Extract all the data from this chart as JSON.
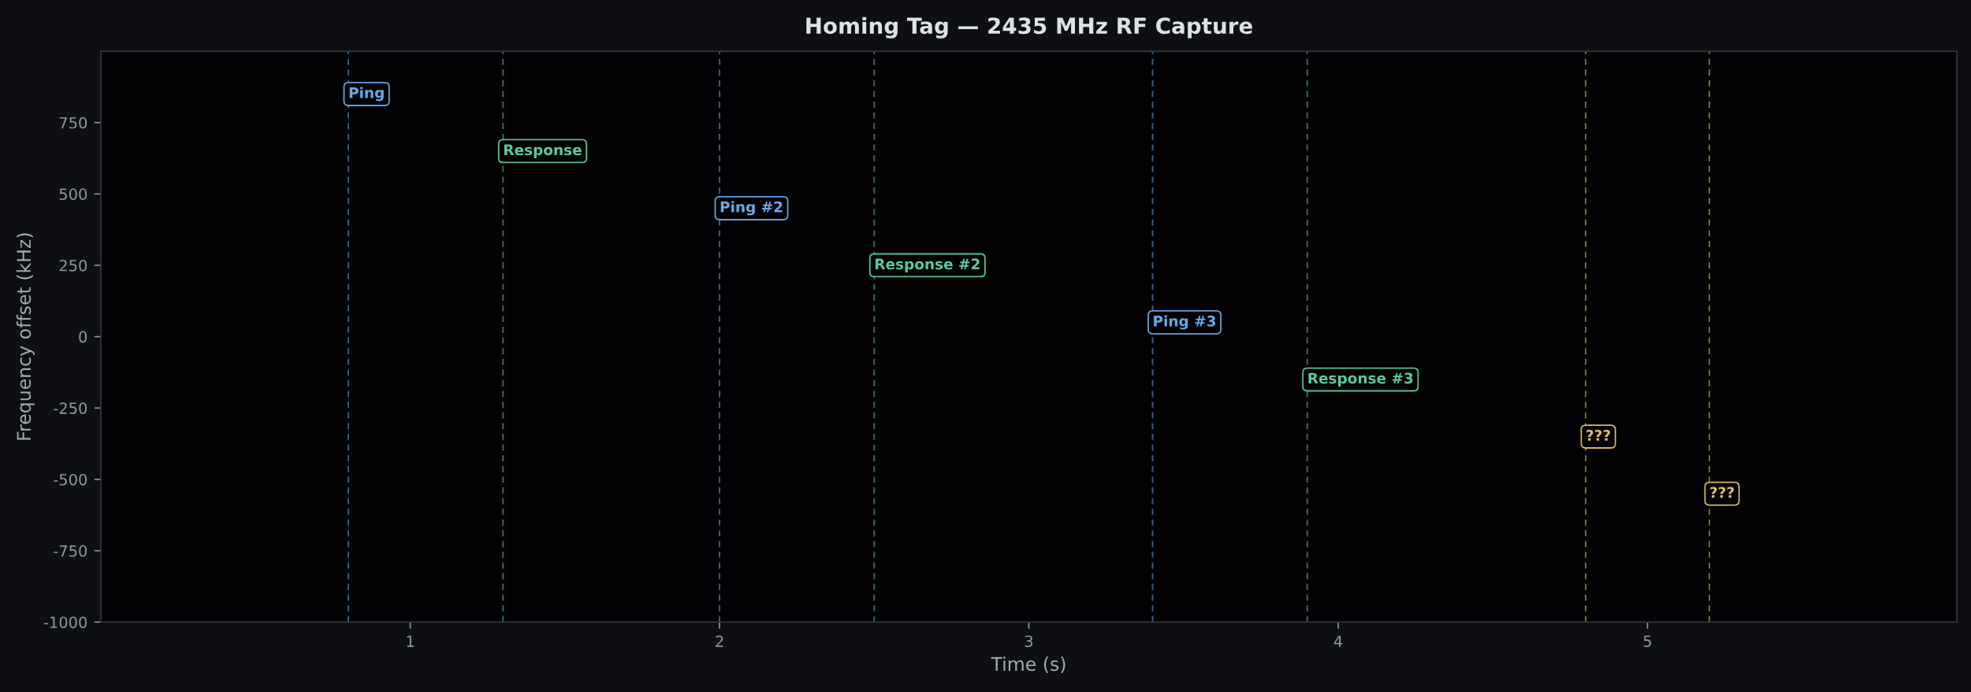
{
  "chart_data": {
    "type": "line",
    "title": "Homing Tag — 2435 MHz RF Capture",
    "xlabel": "Time (s)",
    "ylabel": "Frequency offset (kHz)",
    "xlim": [
      0,
      6
    ],
    "xticks": [
      1,
      2,
      3,
      4,
      5
    ],
    "ylim": [
      -1000,
      1000
    ],
    "yticks": [
      -1000,
      -750,
      -500,
      -250,
      0,
      250,
      500,
      750
    ],
    "ref_lines": [
      {
        "axis": "x",
        "value": 0.8,
        "color": "#6aaae8",
        "line_style": "dashed"
      },
      {
        "axis": "x",
        "value": 1.3,
        "color": "#5cc9a3",
        "line_style": "dashed"
      },
      {
        "axis": "x",
        "value": 2.0,
        "color": "#6aaae8",
        "line_style": "dashed"
      },
      {
        "axis": "x",
        "value": 2.5,
        "color": "#5cc9a3",
        "line_style": "dashed"
      },
      {
        "axis": "x",
        "value": 3.4,
        "color": "#6aaae8",
        "line_style": "dashed"
      },
      {
        "axis": "x",
        "value": 3.9,
        "color": "#5cc9a3",
        "line_style": "dashed"
      },
      {
        "axis": "x",
        "value": 4.8,
        "color": "#e0c068",
        "line_style": "dashed"
      },
      {
        "axis": "x",
        "value": 5.2,
        "color": "#e0c068",
        "line_style": "dashed"
      }
    ],
    "annotations": [
      {
        "text": "Ping",
        "x": 0.8,
        "y": 850
      },
      {
        "text": "Response",
        "x": 1.3,
        "y": 650
      },
      {
        "text": "Ping #2",
        "x": 2.0,
        "y": 450
      },
      {
        "text": "Response #2",
        "x": 2.5,
        "y": 250
      },
      {
        "text": "Ping #3",
        "x": 3.4,
        "y": 50
      },
      {
        "text": "Response #3",
        "x": 3.9,
        "y": -150
      },
      {
        "text": "???",
        "x": 4.8,
        "y": -350
      },
      {
        "text": "???",
        "x": 5.2,
        "y": -550
      }
    ]
  }
}
